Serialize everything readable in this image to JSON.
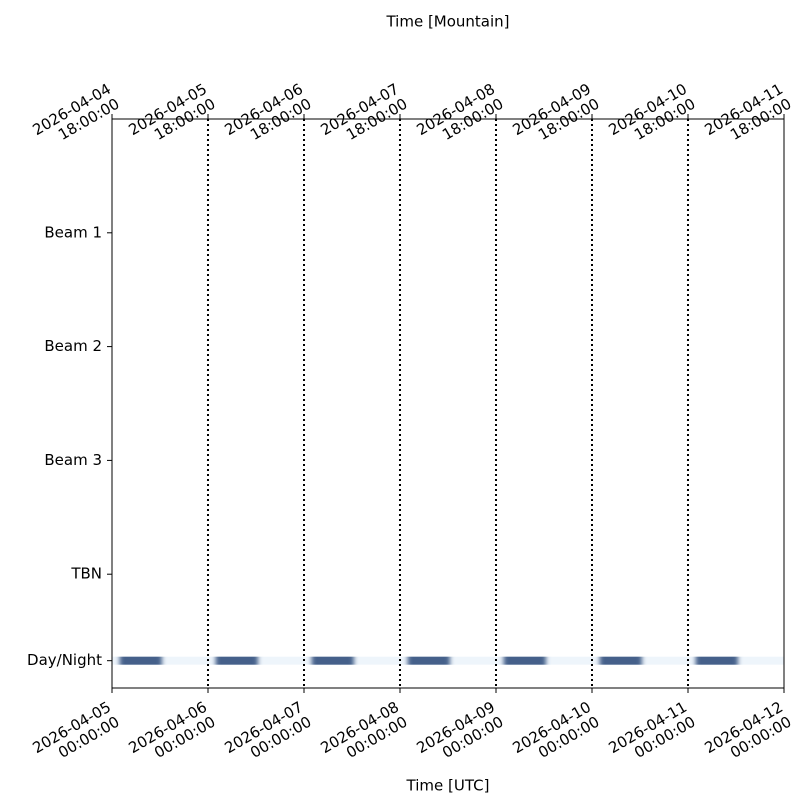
{
  "chart_data": {
    "type": "timeline",
    "title": "Time [Mountain]",
    "x_label": "Time [UTC]",
    "xlim": [
      0,
      7
    ],
    "xticks": [
      {
        "value": 0,
        "label": "2026-04-05\n00:00:00"
      },
      {
        "value": 1,
        "label": "2026-04-06\n00:00:00"
      },
      {
        "value": 2,
        "label": "2026-04-07\n00:00:00"
      },
      {
        "value": 3,
        "label": "2026-04-08\n00:00:00"
      },
      {
        "value": 4,
        "label": "2026-04-09\n00:00:00"
      },
      {
        "value": 5,
        "label": "2026-04-10\n00:00:00"
      },
      {
        "value": 6,
        "label": "2026-04-11\n00:00:00"
      },
      {
        "value": 7,
        "label": "2026-04-12\n00:00:00"
      }
    ],
    "top_xticks": [
      {
        "value": 0,
        "label": "2026-04-04\n18:00:00"
      },
      {
        "value": 1,
        "label": "2026-04-05\n18:00:00"
      },
      {
        "value": 2,
        "label": "2026-04-06\n18:00:00"
      },
      {
        "value": 3,
        "label": "2026-04-07\n18:00:00"
      },
      {
        "value": 4,
        "label": "2026-04-08\n18:00:00"
      },
      {
        "value": 5,
        "label": "2026-04-09\n18:00:00"
      },
      {
        "value": 6,
        "label": "2026-04-10\n18:00:00"
      },
      {
        "value": 7,
        "label": "2026-04-11\n18:00:00"
      }
    ],
    "day_lines": [
      1,
      2,
      3,
      4,
      5,
      6
    ],
    "ylim": [
      0,
      5
    ],
    "yticks": [
      {
        "value": 4,
        "label": "Beam 1"
      },
      {
        "value": 3,
        "label": "Beam 2"
      },
      {
        "value": 2,
        "label": "Beam 3"
      },
      {
        "value": 1,
        "label": "TBN"
      },
      {
        "value": 0.24,
        "label": "Day/Night"
      }
    ],
    "day_color": "#eef5fb",
    "night_color": "#44618a",
    "night_intervals": [
      [
        0.08,
        0.52
      ],
      [
        1.08,
        1.52
      ],
      [
        2.08,
        2.52
      ],
      [
        3.08,
        3.52
      ],
      [
        4.08,
        4.52
      ],
      [
        5.08,
        5.52
      ],
      [
        6.08,
        6.52
      ]
    ]
  }
}
